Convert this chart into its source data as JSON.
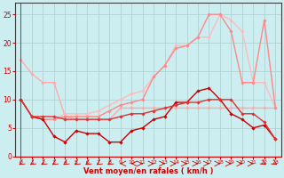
{
  "background_color": "#cceef0",
  "grid_color": "#aacccc",
  "xlabel": "Vent moyen/en rafales ( km/h )",
  "xlabel_color": "#cc0000",
  "tick_color": "#cc0000",
  "axis_color": "#cc0000",
  "ylim": [
    0,
    27
  ],
  "xlim": [
    -0.5,
    23.5
  ],
  "yticks": [
    0,
    5,
    10,
    15,
    20,
    25
  ],
  "xticks": [
    0,
    1,
    2,
    3,
    4,
    5,
    6,
    7,
    8,
    9,
    10,
    11,
    12,
    13,
    14,
    15,
    16,
    17,
    18,
    19,
    20,
    21,
    22,
    23
  ],
  "series": [
    {
      "y": [
        17,
        14.5,
        13,
        13,
        7,
        6.5,
        6.5,
        6.5,
        6.5,
        8.5,
        8.5,
        8.5,
        8.5,
        8.5,
        8.5,
        8.5,
        8.5,
        8.5,
        8.5,
        8.5,
        8.5,
        8.5,
        8.5,
        8.5
      ],
      "color": "#ffaaaa",
      "lw": 1.0,
      "marker": "D",
      "ms": 1.8
    },
    {
      "y": [
        10,
        7,
        6.5,
        6.5,
        7.5,
        7.5,
        7.5,
        8,
        9,
        10,
        11,
        11.5,
        14,
        16,
        19.5,
        19.5,
        21,
        21,
        25,
        24,
        22,
        13,
        13,
        8.5
      ],
      "color": "#ffbbbb",
      "lw": 1.0,
      "marker": "D",
      "ms": 1.8
    },
    {
      "y": [
        10,
        7,
        6.5,
        6.5,
        7,
        7,
        7,
        7,
        8,
        9,
        9.5,
        10,
        14,
        16,
        19,
        19.5,
        21,
        25,
        25,
        22,
        13,
        13,
        24,
        8.5
      ],
      "color": "#ff8888",
      "lw": 1.0,
      "marker": "D",
      "ms": 1.8
    },
    {
      "y": [
        10,
        7,
        6.5,
        3.5,
        2.5,
        4.5,
        4,
        4,
        2.5,
        2.5,
        4.5,
        5,
        6.5,
        7,
        9.5,
        9.5,
        11.5,
        12,
        10,
        7.5,
        6.5,
        5,
        5.5,
        3
      ],
      "color": "#cc0000",
      "lw": 1.0,
      "marker": "D",
      "ms": 1.8
    },
    {
      "y": [
        10,
        7,
        7,
        7,
        6.5,
        6.5,
        6.5,
        6.5,
        6.5,
        7,
        7.5,
        7.5,
        8,
        8.5,
        9,
        9.5,
        9.5,
        10,
        10,
        10,
        7.5,
        7.5,
        6,
        3
      ],
      "color": "#dd3333",
      "lw": 1.0,
      "marker": "D",
      "ms": 1.8
    }
  ],
  "arrow_color": "#cc0000",
  "arrow_angles_deg": [
    225,
    225,
    225,
    225,
    225,
    225,
    225,
    225,
    225,
    270,
    270,
    90,
    90,
    90,
    90,
    90,
    90,
    90,
    90,
    90,
    90,
    90,
    135,
    135
  ]
}
